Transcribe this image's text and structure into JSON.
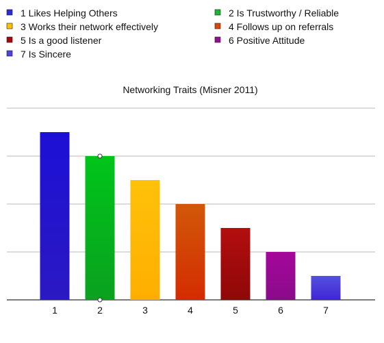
{
  "chart_data": {
    "type": "bar",
    "title": "Networking Traits (Misner 2011)",
    "xlabel": "",
    "ylabel": "",
    "categories": [
      "1",
      "2",
      "3",
      "4",
      "5",
      "6",
      "7"
    ],
    "values": [
      7,
      6,
      5,
      4,
      3,
      2,
      1
    ],
    "ylim": [
      0,
      8
    ],
    "grid": true,
    "y_tick_labels_shown": false,
    "legend_position": "top",
    "legend": [
      {
        "label": "1 Likes Helping Others",
        "color": "#2e2bd6"
      },
      {
        "label": "2 Is Trustworthy / Reliable",
        "color": "#19b833"
      },
      {
        "label": "3 Works their network effectively",
        "color": "#ffbf00"
      },
      {
        "label": "4 Follows up on referrals",
        "color": "#d84a08"
      },
      {
        "label": "5 Is a good listener",
        "color": "#a80808"
      },
      {
        "label": "6 Positive Attitude",
        "color": "#950f95"
      },
      {
        "label": "7 Is Sincere",
        "color": "#4f43df"
      }
    ],
    "bar_colors": [
      [
        "#1d10d6",
        "#2b19c2"
      ],
      [
        "#00c51a",
        "#0aa11f"
      ],
      [
        "#ffc10a",
        "#ffae00"
      ],
      [
        "#d25809",
        "#d42c00"
      ],
      [
        "#b30e0e",
        "#8f0808"
      ],
      [
        "#a5079a",
        "#8a0b8a"
      ],
      [
        "#5452df",
        "#4125d6"
      ]
    ]
  }
}
